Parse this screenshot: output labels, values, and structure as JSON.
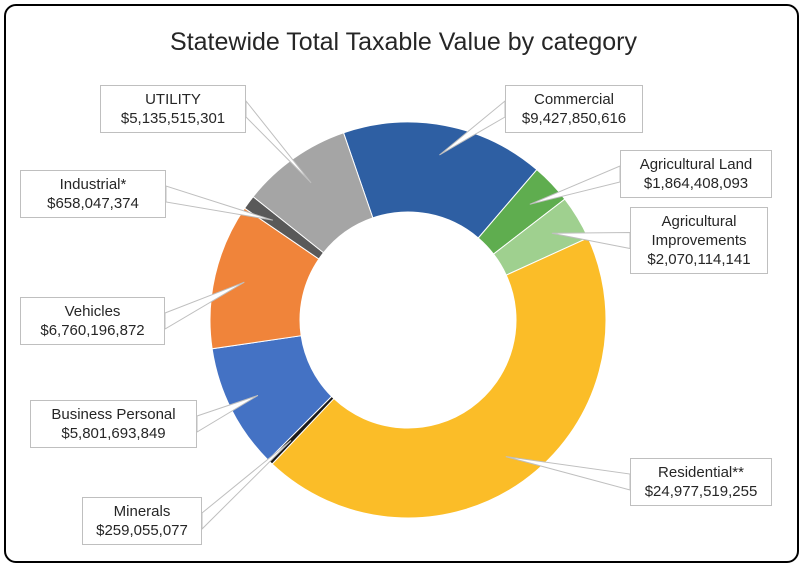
{
  "chart_data": {
    "type": "donut",
    "title": "Statewide Total Taxable Value by category",
    "categories": [
      "Commercial",
      "Agricultural Land",
      "Agricultural Improvements",
      "Residential**",
      "Minerals",
      "Business Personal",
      "Vehicles",
      "Industrial*",
      "UTILITY"
    ],
    "values": [
      9427850616,
      1864408093,
      2070114141,
      24977519255,
      259055077,
      5801693849,
      6760196872,
      658047374,
      5135515301
    ],
    "value_labels": [
      "$9,427,850,616",
      "$1,864,408,093",
      "$2,070,114,141",
      "$24,977,519,255",
      "$259,055,077",
      "$5,801,693,849",
      "$6,760,196,872",
      "$658,047,374",
      "$5,135,515,301"
    ],
    "colors": [
      "#2e5fa3",
      "#5fad4f",
      "#9fd08f",
      "#fbbd28",
      "#1a1a1a",
      "#4472c4",
      "#f0843a",
      "#595959",
      "#a5a5a5"
    ]
  }
}
